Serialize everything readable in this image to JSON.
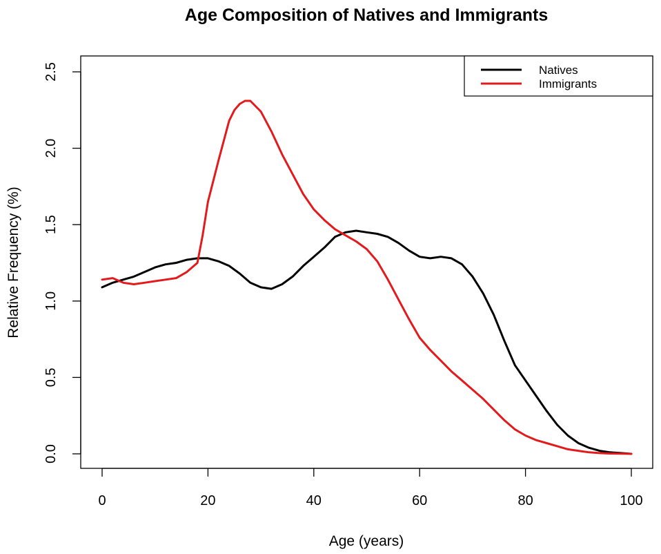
{
  "chart_data": {
    "type": "line",
    "title": "Age Composition of Natives and Immigrants",
    "xlabel": "Age (years)",
    "ylabel": "Relative Frequency (%)",
    "xlim": [
      0,
      100
    ],
    "ylim": [
      0,
      2.5
    ],
    "xticks": [
      0,
      20,
      40,
      60,
      80,
      100
    ],
    "yticks": [
      0.0,
      0.5,
      1.0,
      1.5,
      2.0,
      2.5
    ],
    "xtick_labels": [
      "0",
      "20",
      "40",
      "60",
      "80",
      "100"
    ],
    "ytick_labels": [
      "0.0",
      "0.5",
      "1.0",
      "1.5",
      "2.0",
      "2.5"
    ],
    "grid": false,
    "legend_position": "top-right",
    "series": [
      {
        "name": "Natives",
        "color": "#000000",
        "x": [
          0,
          2,
          4,
          6,
          8,
          10,
          12,
          14,
          16,
          18,
          20,
          22,
          24,
          26,
          28,
          30,
          32,
          34,
          36,
          38,
          40,
          42,
          44,
          46,
          48,
          50,
          52,
          54,
          56,
          58,
          60,
          62,
          64,
          66,
          68,
          70,
          72,
          74,
          76,
          78,
          80,
          82,
          84,
          86,
          88,
          90,
          92,
          94,
          96,
          98,
          100
        ],
        "y": [
          1.09,
          1.12,
          1.14,
          1.16,
          1.19,
          1.22,
          1.24,
          1.25,
          1.27,
          1.28,
          1.28,
          1.26,
          1.23,
          1.18,
          1.12,
          1.09,
          1.08,
          1.11,
          1.16,
          1.23,
          1.29,
          1.35,
          1.42,
          1.45,
          1.46,
          1.45,
          1.44,
          1.42,
          1.38,
          1.33,
          1.29,
          1.28,
          1.29,
          1.28,
          1.24,
          1.16,
          1.05,
          0.91,
          0.74,
          0.58,
          0.48,
          0.38,
          0.28,
          0.19,
          0.12,
          0.07,
          0.04,
          0.02,
          0.01,
          0.005,
          0.0
        ]
      },
      {
        "name": "Immigrants",
        "color": "#e31a1c",
        "x": [
          0,
          2,
          4,
          6,
          8,
          10,
          12,
          14,
          16,
          18,
          19,
          20,
          22,
          24,
          25,
          26,
          27,
          28,
          30,
          32,
          34,
          36,
          38,
          40,
          42,
          44,
          46,
          48,
          50,
          52,
          54,
          56,
          58,
          60,
          62,
          64,
          66,
          68,
          70,
          72,
          74,
          76,
          78,
          80,
          82,
          84,
          86,
          88,
          90,
          92,
          94,
          96,
          98,
          100
        ],
        "y": [
          1.14,
          1.15,
          1.12,
          1.11,
          1.12,
          1.13,
          1.14,
          1.15,
          1.19,
          1.25,
          1.43,
          1.65,
          1.92,
          2.18,
          2.25,
          2.29,
          2.31,
          2.31,
          2.24,
          2.11,
          1.96,
          1.83,
          1.7,
          1.6,
          1.53,
          1.47,
          1.43,
          1.39,
          1.34,
          1.26,
          1.14,
          1.01,
          0.88,
          0.76,
          0.68,
          0.61,
          0.54,
          0.48,
          0.42,
          0.36,
          0.29,
          0.22,
          0.16,
          0.12,
          0.09,
          0.07,
          0.05,
          0.03,
          0.02,
          0.01,
          0.005,
          0.002,
          0.001,
          0.0
        ]
      }
    ]
  }
}
